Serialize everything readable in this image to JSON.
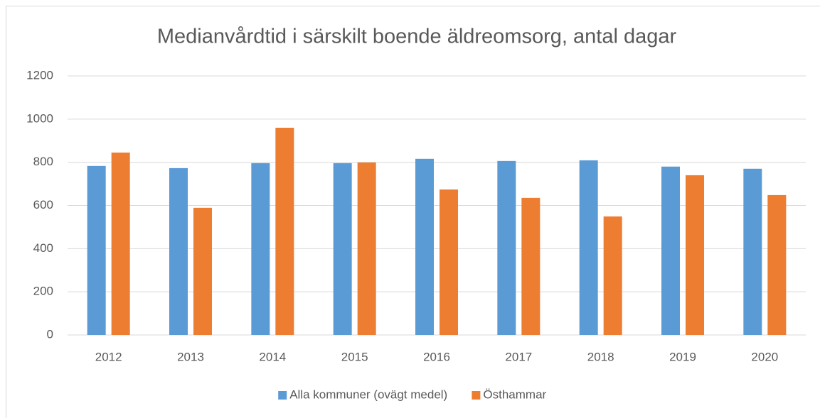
{
  "chart_data": {
    "type": "bar",
    "title": "Medianvårdtid i särskilt boende äldreomsorg, antal dagar",
    "categories": [
      "2012",
      "2013",
      "2014",
      "2015",
      "2016",
      "2017",
      "2018",
      "2019",
      "2020"
    ],
    "series": [
      {
        "name": "Alla kommuner (ovägt medel)",
        "color": "#5b9bd5",
        "values": [
          783,
          773,
          796,
          796,
          816,
          806,
          809,
          780,
          770
        ]
      },
      {
        "name": "Östhammar",
        "color": "#ed7d31",
        "values": [
          845,
          589,
          960,
          799,
          674,
          635,
          549,
          740,
          648
        ]
      }
    ],
    "ylim": [
      0,
      1200
    ],
    "yticks": [
      0,
      200,
      400,
      600,
      800,
      1000,
      1200
    ],
    "grid": true,
    "legend": "bottom"
  }
}
